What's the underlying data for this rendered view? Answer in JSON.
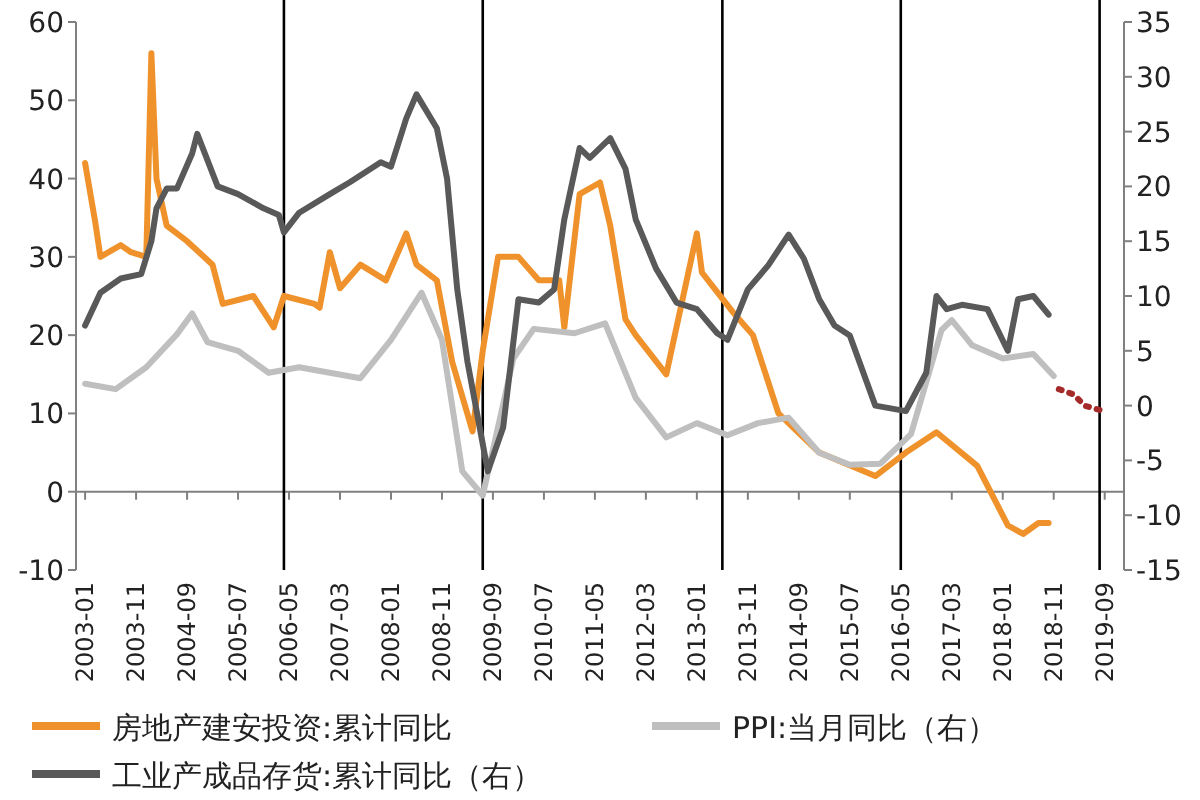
{
  "chart_data": {
    "type": "line",
    "legend": "bottom",
    "xlim": [
      "2002-12",
      "2019-12"
    ],
    "xticks": [
      {
        "value": "2003-01",
        "label": "2003-01"
      },
      {
        "value": "2003-11",
        "label": "2003-11"
      },
      {
        "value": "2004-09",
        "label": "2004-09"
      },
      {
        "value": "2005-07",
        "label": "2005-07"
      },
      {
        "value": "2006-05",
        "label": "2006-05"
      },
      {
        "value": "2007-03",
        "label": "2007-03"
      },
      {
        "value": "2008-01",
        "label": "2008-01"
      },
      {
        "value": "2008-11",
        "label": "2008-11"
      },
      {
        "value": "2009-09",
        "label": "2009-09"
      },
      {
        "value": "2010-07",
        "label": "2010-07"
      },
      {
        "value": "2011-05",
        "label": "2011-05"
      },
      {
        "value": "2012-03",
        "label": "2012-03"
      },
      {
        "value": "2013-01",
        "label": "2013-01"
      },
      {
        "value": "2013-11",
        "label": "2013-11"
      },
      {
        "value": "2014-09",
        "label": "2014-09"
      },
      {
        "value": "2015-07",
        "label": "2015-07"
      },
      {
        "value": "2016-05",
        "label": "2016-05"
      },
      {
        "value": "2017-03",
        "label": "2017-03"
      },
      {
        "value": "2018-01",
        "label": "2018-01"
      },
      {
        "value": "2018-11",
        "label": "2018-11"
      },
      {
        "value": "2019-09",
        "label": "2019-09"
      }
    ],
    "ylim": [
      -10,
      60
    ],
    "yticks": [
      -10,
      0,
      10,
      20,
      30,
      40,
      50,
      60
    ],
    "y2lim": [
      -15,
      35
    ],
    "y2ticks": [
      -15,
      -10,
      -5,
      0,
      5,
      10,
      15,
      20,
      25,
      30,
      35
    ],
    "ref_lines": [
      {
        "axis": "x",
        "value": "2006-04",
        "color": "#000000"
      },
      {
        "axis": "x",
        "value": "2009-07",
        "color": "#000000"
      },
      {
        "axis": "x",
        "value": "2013-06",
        "color": "#000000"
      },
      {
        "axis": "x",
        "value": "2016-05",
        "color": "#000000"
      },
      {
        "axis": "x",
        "value": "2019-08",
        "color": "#000000"
      }
    ],
    "series": [
      {
        "name": "房地产建安投资:累计同比",
        "color": "#f0922c",
        "x": [
          "2003-01",
          "2003-03",
          "2003-04",
          "2003-08",
          "2003-10",
          "2004-01",
          "2004-02",
          "2004-03",
          "2004-05",
          "2004-09",
          "2005-02",
          "2005-04",
          "2005-10",
          "2006-02",
          "2006-04",
          "2006-10",
          "2006-11",
          "2007-01",
          "2007-03",
          "2007-07",
          "2007-12",
          "2008-04",
          "2008-06",
          "2008-10",
          "2009-01",
          "2009-05",
          "2009-07",
          "2009-10",
          "2010-02",
          "2010-06",
          "2010-10",
          "2010-11",
          "2011-02",
          "2011-06",
          "2011-08",
          "2011-11",
          "2012-01",
          "2012-07",
          "2013-01",
          "2013-02",
          "2013-05",
          "2013-08",
          "2013-12",
          "2014-05",
          "2015-01",
          "2015-12",
          "2016-06",
          "2016-12",
          "2017-08",
          "2018-02",
          "2018-05",
          "2018-08",
          "2018-10"
        ],
        "values": [
          42,
          34.4,
          30,
          31.5,
          30.6,
          30,
          56,
          40,
          34,
          32,
          29,
          24,
          25,
          21,
          25,
          24,
          23.5,
          30.6,
          26,
          29,
          27,
          33,
          29,
          27,
          16.6,
          7.7,
          18,
          30,
          30,
          27,
          27,
          21,
          38,
          39.5,
          34,
          22,
          20,
          15,
          33,
          28,
          25.5,
          23,
          20,
          10,
          5,
          2,
          5,
          7.6,
          3.3,
          -4.3,
          -5.4,
          -4,
          -4
        ]
      },
      {
        "name": "PPI:当月同比（右）",
        "color": "#bfbfbf",
        "axis": "y2",
        "x": [
          "2003-01",
          "2003-07",
          "2004-01",
          "2004-07",
          "2004-10",
          "2005-01",
          "2005-07",
          "2006-01",
          "2006-07",
          "2007-01",
          "2007-07",
          "2008-01",
          "2008-07",
          "2008-11",
          "2009-03",
          "2009-07",
          "2010-01",
          "2010-05",
          "2011-01",
          "2011-07",
          "2012-01",
          "2012-07",
          "2013-01",
          "2013-07",
          "2014-01",
          "2014-07",
          "2015-01",
          "2015-07",
          "2016-01",
          "2016-07",
          "2017-01",
          "2017-03",
          "2017-07",
          "2018-01",
          "2018-07",
          "2018-11"
        ],
        "values": [
          2,
          1.5,
          3.5,
          6.5,
          8.4,
          5.8,
          5,
          3,
          3.5,
          3,
          2.5,
          6,
          10.3,
          6,
          -6,
          -8.2,
          4.3,
          7,
          6.6,
          7.5,
          0.7,
          -2.9,
          -1.6,
          -2.7,
          -1.6,
          -1.1,
          -4.3,
          -5.4,
          -5.3,
          -2.6,
          6.9,
          7.8,
          5.5,
          4.3,
          4.7,
          2.7
        ]
      },
      {
        "name": "工业产成品存货:累计同比（右）",
        "color": "#595959",
        "axis": "y2",
        "x": [
          "2003-01",
          "2003-04",
          "2003-08",
          "2003-12",
          "2004-02",
          "2004-03",
          "2004-05",
          "2004-07",
          "2004-10",
          "2004-11",
          "2005-03",
          "2005-07",
          "2005-12",
          "2006-03",
          "2006-04",
          "2006-07",
          "2007-01",
          "2007-05",
          "2007-11",
          "2008-01",
          "2008-04",
          "2008-06",
          "2008-10",
          "2008-12",
          "2009-02",
          "2009-04",
          "2009-08",
          "2009-11",
          "2010-02",
          "2010-06",
          "2010-09",
          "2010-11",
          "2011-02",
          "2011-04",
          "2011-08",
          "2011-11",
          "2012-01",
          "2012-05",
          "2012-09",
          "2013-01",
          "2013-05",
          "2013-07",
          "2013-11",
          "2014-03",
          "2014-07",
          "2014-10",
          "2015-01",
          "2015-04",
          "2015-07",
          "2015-12",
          "2016-06",
          "2016-10",
          "2016-12",
          "2017-02",
          "2017-05",
          "2017-10",
          "2018-02",
          "2018-04",
          "2018-07",
          "2018-10"
        ],
        "values": [
          7.3,
          10.3,
          11.6,
          12,
          15,
          18,
          19.8,
          19.8,
          23,
          24.8,
          20,
          19.3,
          18,
          17.4,
          15.8,
          17.6,
          19.3,
          20.4,
          22.2,
          21.8,
          26.2,
          28.4,
          25.3,
          20.7,
          10.6,
          4,
          -6,
          -2,
          9.7,
          9.4,
          10.6,
          17,
          23.5,
          22.6,
          24.4,
          21.6,
          17,
          12.5,
          9.4,
          8.8,
          6.6,
          6,
          10.6,
          12.8,
          15.6,
          13.4,
          9.7,
          7.3,
          6.4,
          0,
          -0.5,
          3,
          10,
          8.8,
          9.2,
          8.8,
          5,
          9.7,
          10,
          8.3
        ]
      },
      {
        "color": "#a52a2a",
        "axis": "y2",
        "line_style": "dotted",
        "x": [
          "2018-12",
          "2019-03",
          "2019-05",
          "2019-08"
        ],
        "values": [
          1.5,
          1,
          0,
          -0.4
        ]
      }
    ]
  }
}
